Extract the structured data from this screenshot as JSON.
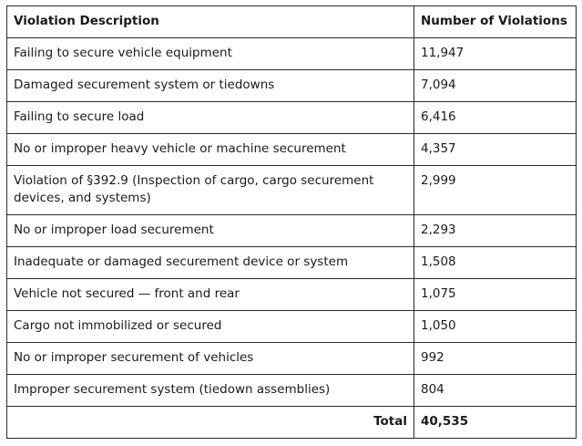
{
  "table": {
    "headers": [
      "Violation Description",
      "Number of Violations"
    ],
    "rows": [
      [
        "Failing to secure vehicle equipment",
        "11,947"
      ],
      [
        "Damaged securement system or tiedowns",
        "7,094"
      ],
      [
        "Failing to secure load",
        "6,416"
      ],
      [
        "No or improper heavy vehicle or machine securement",
        "4,357"
      ],
      [
        "Violation of §392.9 (Inspection of cargo, cargo securement devices, and systems)",
        "2,999"
      ],
      [
        "No or improper load securement",
        "2,293"
      ],
      [
        "Inadequate or damaged securement device or system",
        "1,508"
      ],
      [
        "Vehicle not secured — front and rear",
        "1,075"
      ],
      [
        "Cargo not immobilized or secured",
        "1,050"
      ],
      [
        "No or improper securement of vehicles",
        "992"
      ],
      [
        "Improper securement system (tiedown assemblies)",
        "804"
      ]
    ],
    "total_label": "Total",
    "total_value": "40,535"
  }
}
